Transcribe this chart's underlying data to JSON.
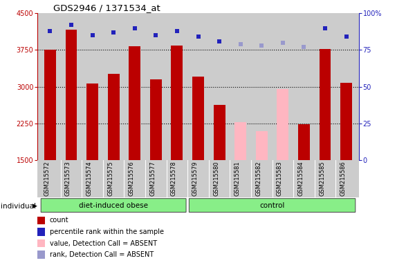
{
  "title": "GDS2946 / 1371534_at",
  "samples": [
    "GSM215572",
    "GSM215573",
    "GSM215574",
    "GSM215575",
    "GSM215576",
    "GSM215577",
    "GSM215578",
    "GSM215579",
    "GSM215580",
    "GSM215581",
    "GSM215582",
    "GSM215583",
    "GSM215584",
    "GSM215585",
    "GSM215586"
  ],
  "count_values": [
    3760,
    4170,
    3060,
    3270,
    3830,
    3150,
    3840,
    3210,
    2630,
    null,
    null,
    null,
    2230,
    3770,
    3080
  ],
  "absent_bar_values": [
    null,
    null,
    null,
    null,
    null,
    null,
    null,
    null,
    null,
    2280,
    2100,
    2960,
    null,
    null,
    null
  ],
  "rank_present": [
    88,
    92,
    85,
    87,
    90,
    85,
    88,
    84,
    81,
    null,
    null,
    null,
    null,
    90,
    84
  ],
  "rank_absent": [
    null,
    null,
    null,
    null,
    null,
    null,
    null,
    null,
    null,
    79,
    78,
    80,
    77,
    null,
    null
  ],
  "n_group1": 7,
  "n_group2": 8,
  "group1_label": "diet-induced obese",
  "group2_label": "control",
  "ylim_left": [
    1500,
    4500
  ],
  "ylim_right": [
    0,
    100
  ],
  "yticks_left": [
    1500,
    2250,
    3000,
    3750,
    4500
  ],
  "yticks_right": [
    0,
    25,
    50,
    75,
    100
  ],
  "bar_color_present": "#BB0000",
  "bar_color_absent": "#FFB6C1",
  "rank_color_present": "#2222BB",
  "rank_color_absent": "#9999CC",
  "bg_color": "#CCCCCC",
  "group_color": "#88EE88",
  "legend_items": [
    {
      "label": "count",
      "color": "#BB0000"
    },
    {
      "label": "percentile rank within the sample",
      "color": "#2222BB"
    },
    {
      "label": "value, Detection Call = ABSENT",
      "color": "#FFB6C1"
    },
    {
      "label": "rank, Detection Call = ABSENT",
      "color": "#9999CC"
    }
  ]
}
